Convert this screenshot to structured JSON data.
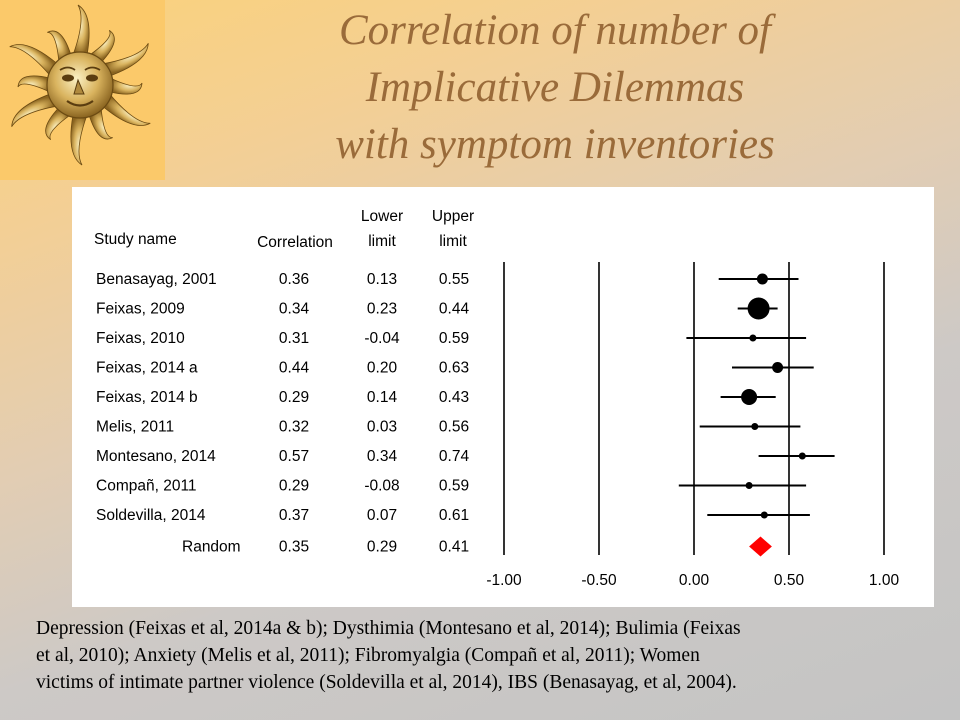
{
  "slide": {
    "title_lines": [
      "Correlation of number of",
      "Implicative Dilemmas",
      "with symptom inventories"
    ],
    "caption_lines": [
      "Depression (Feixas et al, 2014a & b); Dysthimia (Montesano et al, 2014); Bulimia (Feixas",
      "et al, 2010); Anxiety (Melis et al, 2011); Fibromyalgia (Compañ et al, 2011); Women",
      "victims of intimate partner violence (Soldevilla et al, 2014), IBS (Benasayag, et al, 2004)."
    ],
    "logo_icon": "sun-face-icon"
  },
  "chart_data": {
    "type": "forest",
    "headers": {
      "study": "Study name",
      "correlation": "Correlation",
      "lower": [
        "Lower",
        "limit"
      ],
      "upper": [
        "Upper",
        "limit"
      ]
    },
    "studies": [
      {
        "name": "Benasayag, 2001",
        "correlation": "0.36",
        "lower": "0.13",
        "upper": "0.55",
        "r": 0.36,
        "lo": 0.13,
        "hi": 0.55,
        "weight": "small"
      },
      {
        "name": "Feixas, 2009",
        "correlation": "0.34",
        "lower": "0.23",
        "upper": "0.44",
        "r": 0.34,
        "lo": 0.23,
        "hi": 0.44,
        "weight": "large"
      },
      {
        "name": "Feixas, 2010",
        "correlation": "0.31",
        "lower": "-0.04",
        "upper": "0.59",
        "r": 0.31,
        "lo": -0.04,
        "hi": 0.59,
        "weight": "tiny"
      },
      {
        "name": "Feixas, 2014 a",
        "correlation": "0.44",
        "lower": "0.20",
        "upper": "0.63",
        "r": 0.44,
        "lo": 0.2,
        "hi": 0.63,
        "weight": "small"
      },
      {
        "name": "Feixas, 2014 b",
        "correlation": "0.29",
        "lower": "0.14",
        "upper": "0.43",
        "r": 0.29,
        "lo": 0.14,
        "hi": 0.43,
        "weight": "medium"
      },
      {
        "name": "Melis, 2011",
        "correlation": "0.32",
        "lower": "0.03",
        "upper": "0.56",
        "r": 0.32,
        "lo": 0.03,
        "hi": 0.56,
        "weight": "tiny"
      },
      {
        "name": "Montesano, 2014",
        "correlation": "0.57",
        "lower": "0.34",
        "upper": "0.74",
        "r": 0.57,
        "lo": 0.34,
        "hi": 0.74,
        "weight": "tiny"
      },
      {
        "name": "Compañ, 2011",
        "correlation": "0.29",
        "lower": "-0.08",
        "upper": "0.59",
        "r": 0.29,
        "lo": -0.08,
        "hi": 0.59,
        "weight": "tiny"
      },
      {
        "name": "Soldevilla, 2014",
        "correlation": "0.37",
        "lower": "0.07",
        "upper": "0.61",
        "r": 0.37,
        "lo": 0.07,
        "hi": 0.61,
        "weight": "tiny"
      }
    ],
    "summary": {
      "name": "Random",
      "correlation": "0.35",
      "lower": "0.29",
      "upper": "0.41",
      "r": 0.35,
      "lo": 0.29,
      "hi": 0.41
    },
    "xlim": [
      -1.0,
      1.0
    ],
    "xticks": [
      -1.0,
      -0.5,
      0.0,
      0.5,
      1.0
    ],
    "xtick_labels": [
      "-1.00",
      "-0.50",
      "0.00",
      "0.50",
      "1.00"
    ],
    "colors": {
      "marker": "#000000",
      "summary": "#ff0000"
    }
  }
}
